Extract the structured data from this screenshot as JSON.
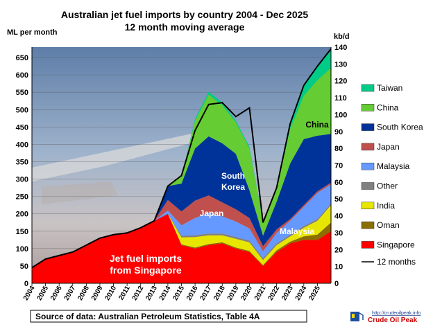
{
  "chart_data": {
    "type": "area",
    "stacked": true,
    "title": "Australian jet fuel imports by country 2004 - Dec 2025",
    "subtitle": "12 month moving average",
    "ylabel": "ML per month",
    "ylabel_right": "kb/d",
    "ylim": [
      0,
      680
    ],
    "ylim_right": [
      0,
      140
    ],
    "yticks": [
      0,
      50,
      100,
      150,
      200,
      250,
      300,
      350,
      400,
      450,
      500,
      550,
      600,
      650
    ],
    "yticks_right": [
      0,
      10,
      20,
      30,
      40,
      50,
      60,
      70,
      80,
      90,
      100,
      110,
      120,
      130,
      140
    ],
    "x_range": [
      2004,
      2026
    ],
    "xticks": [
      "2004",
      "2005",
      "2006",
      "2007",
      "2008",
      "2009",
      "2010",
      "2011",
      "2012",
      "2013",
      "2014",
      "2015",
      "2016",
      "2017",
      "2018",
      "2019",
      "2020",
      "2021",
      "2022",
      "2023",
      "2024",
      "2025"
    ],
    "grid": true,
    "legend_position": "right",
    "x": [
      2004,
      2005,
      2006,
      2007,
      2008,
      2009,
      2010,
      2011,
      2012,
      2013,
      2014,
      2015,
      2016,
      2017,
      2018,
      2019,
      2020,
      2021,
      2022,
      2023,
      2024,
      2025,
      2026
    ],
    "series": [
      {
        "name": "Singapore",
        "color": "#ff0000",
        "values": [
          45,
          70,
          80,
          90,
          110,
          130,
          140,
          145,
          160,
          180,
          200,
          110,
          100,
          110,
          115,
          100,
          90,
          50,
          90,
          115,
          125,
          125,
          150
        ]
      },
      {
        "name": "Oman",
        "color": "#8b6d00",
        "values": [
          0,
          0,
          0,
          0,
          0,
          0,
          0,
          0,
          0,
          0,
          0,
          2,
          3,
          3,
          3,
          3,
          3,
          2,
          5,
          5,
          10,
          15,
          25
        ]
      },
      {
        "name": "India",
        "color": "#e6e600",
        "values": [
          0,
          0,
          0,
          0,
          0,
          0,
          0,
          0,
          0,
          0,
          0,
          20,
          30,
          25,
          20,
          25,
          25,
          15,
          15,
          15,
          25,
          40,
          50
        ]
      },
      {
        "name": "Other",
        "color": "#808080",
        "values": [
          0,
          0,
          0,
          0,
          0,
          0,
          0,
          0,
          0,
          0,
          0,
          5,
          5,
          5,
          5,
          5,
          5,
          5,
          5,
          5,
          5,
          5,
          5
        ]
      },
      {
        "name": "Malaysia",
        "color": "#6699ff",
        "values": [
          0,
          0,
          0,
          0,
          0,
          0,
          0,
          0,
          0,
          0,
          10,
          30,
          50,
          60,
          50,
          45,
          35,
          20,
          30,
          40,
          55,
          75,
          55
        ]
      },
      {
        "name": "Japan",
        "color": "#c0504d",
        "values": [
          0,
          0,
          0,
          0,
          0,
          0,
          0,
          0,
          0,
          0,
          30,
          40,
          50,
          50,
          40,
          35,
          30,
          15,
          10,
          5,
          5,
          5,
          5
        ]
      },
      {
        "name": "South Korea",
        "color": "#003399",
        "values": [
          0,
          0,
          0,
          0,
          0,
          0,
          0,
          0,
          0,
          0,
          40,
          80,
          150,
          170,
          170,
          160,
          80,
          30,
          80,
          160,
          190,
          160,
          140
        ]
      },
      {
        "name": "China",
        "color": "#66cc33",
        "values": [
          0,
          0,
          0,
          0,
          0,
          0,
          0,
          0,
          0,
          0,
          0,
          20,
          80,
          120,
          110,
          90,
          120,
          40,
          40,
          100,
          125,
          160,
          190
        ]
      },
      {
        "name": "Taiwan",
        "color": "#00cc88",
        "values": [
          0,
          0,
          0,
          0,
          0,
          0,
          0,
          0,
          0,
          0,
          0,
          0,
          5,
          8,
          8,
          5,
          5,
          3,
          3,
          10,
          30,
          40,
          50
        ]
      }
    ],
    "line_series": {
      "name": "12 months",
      "color": "#000000",
      "values": [
        45,
        70,
        80,
        90,
        110,
        130,
        140,
        145,
        160,
        180,
        280,
        310,
        440,
        515,
        520,
        480,
        505,
        175,
        275,
        460,
        570,
        625,
        675
      ]
    },
    "annotations": [
      {
        "text": "Jet fuel imports",
        "color": "#ffffff"
      },
      {
        "text": "from Singapore",
        "color": "#ffffff"
      },
      {
        "text": "South",
        "color": "#ffffff"
      },
      {
        "text": "Korea",
        "color": "#ffffff"
      },
      {
        "text": "Japan",
        "color": "#ffffff"
      },
      {
        "text": "Malaysia",
        "color": "#ffffff"
      },
      {
        "text": "China",
        "color": "#000000"
      }
    ]
  },
  "legend": {
    "title_line": "12 months"
  },
  "source": {
    "text": "Source of data: Australian Petroleum Statistics, Table 4A"
  },
  "logo": {
    "url_text": "http://crudeoilpeak.info",
    "name": "Crude Oil Peak"
  }
}
